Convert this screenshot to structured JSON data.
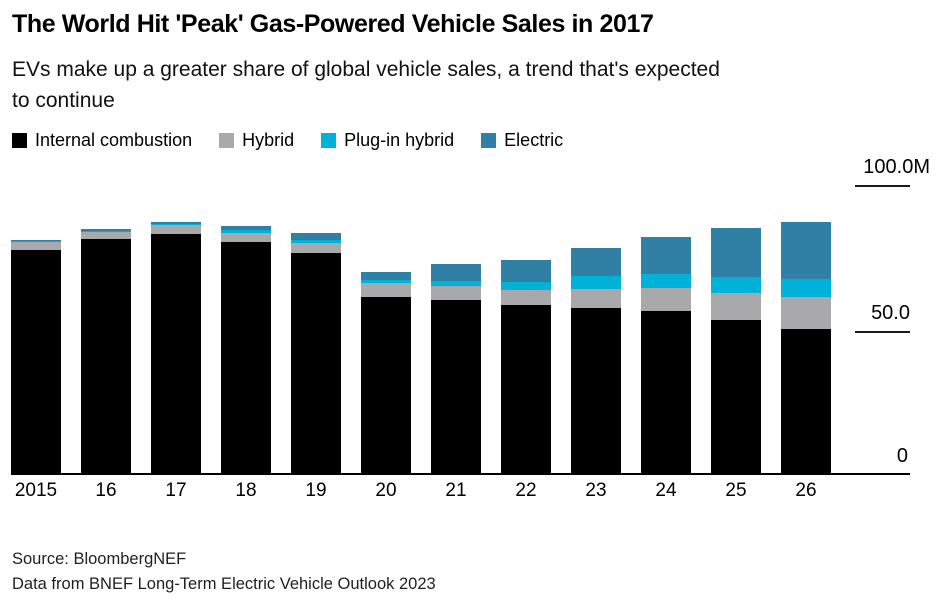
{
  "header": {
    "title": "The World Hit 'Peak' Gas-Powered Vehicle Sales in 2017",
    "subtitle_line1": "EVs make up a greater share of global vehicle sales, a trend that's expected",
    "subtitle_line2": "to continue"
  },
  "chart_data": {
    "type": "bar",
    "stacked": true,
    "title": "The World Hit 'Peak' Gas-Powered Vehicle Sales in 2017",
    "unit": "millions of vehicles",
    "categories": [
      "2015",
      "16",
      "17",
      "18",
      "19",
      "20",
      "21",
      "22",
      "23",
      "24",
      "25",
      "26"
    ],
    "series": [
      {
        "name": "Internal combustion",
        "color": "#000000",
        "values": [
          77.7,
          81.5,
          83.3,
          80.7,
          76.7,
          61.4,
          60.5,
          58.7,
          57.7,
          56.6,
          53.5,
          50.2
        ]
      },
      {
        "name": "Hybrid",
        "color": "#a9a9ab",
        "values": [
          2.8,
          2.5,
          3.1,
          3.1,
          3.6,
          5.0,
          4.9,
          5.2,
          6.7,
          8.1,
          9.2,
          11.2
        ]
      },
      {
        "name": "Plug-in hybrid",
        "color": "#00b1d8",
        "values": [
          0.4,
          0.5,
          0.5,
          0.9,
          0.9,
          1.1,
          1.7,
          2.9,
          4.3,
          4.6,
          5.8,
          6.3
        ]
      },
      {
        "name": "Electric",
        "color": "#2f80a4",
        "values": [
          0.4,
          0.5,
          0.6,
          1.4,
          2.5,
          2.7,
          5.8,
          7.4,
          9.8,
          13.1,
          16.8,
          19.7
        ]
      }
    ],
    "y_axis": {
      "min": 0,
      "max": 100,
      "tick_labels": [
        "100.0M",
        "50.0",
        "0"
      ]
    },
    "legend_position": "top",
    "grid": false,
    "background": "#ffffff"
  },
  "footer": {
    "source": "Source: BloombergNEF",
    "note": "Data from BNEF Long-Term Electric Vehicle Outlook 2023"
  }
}
